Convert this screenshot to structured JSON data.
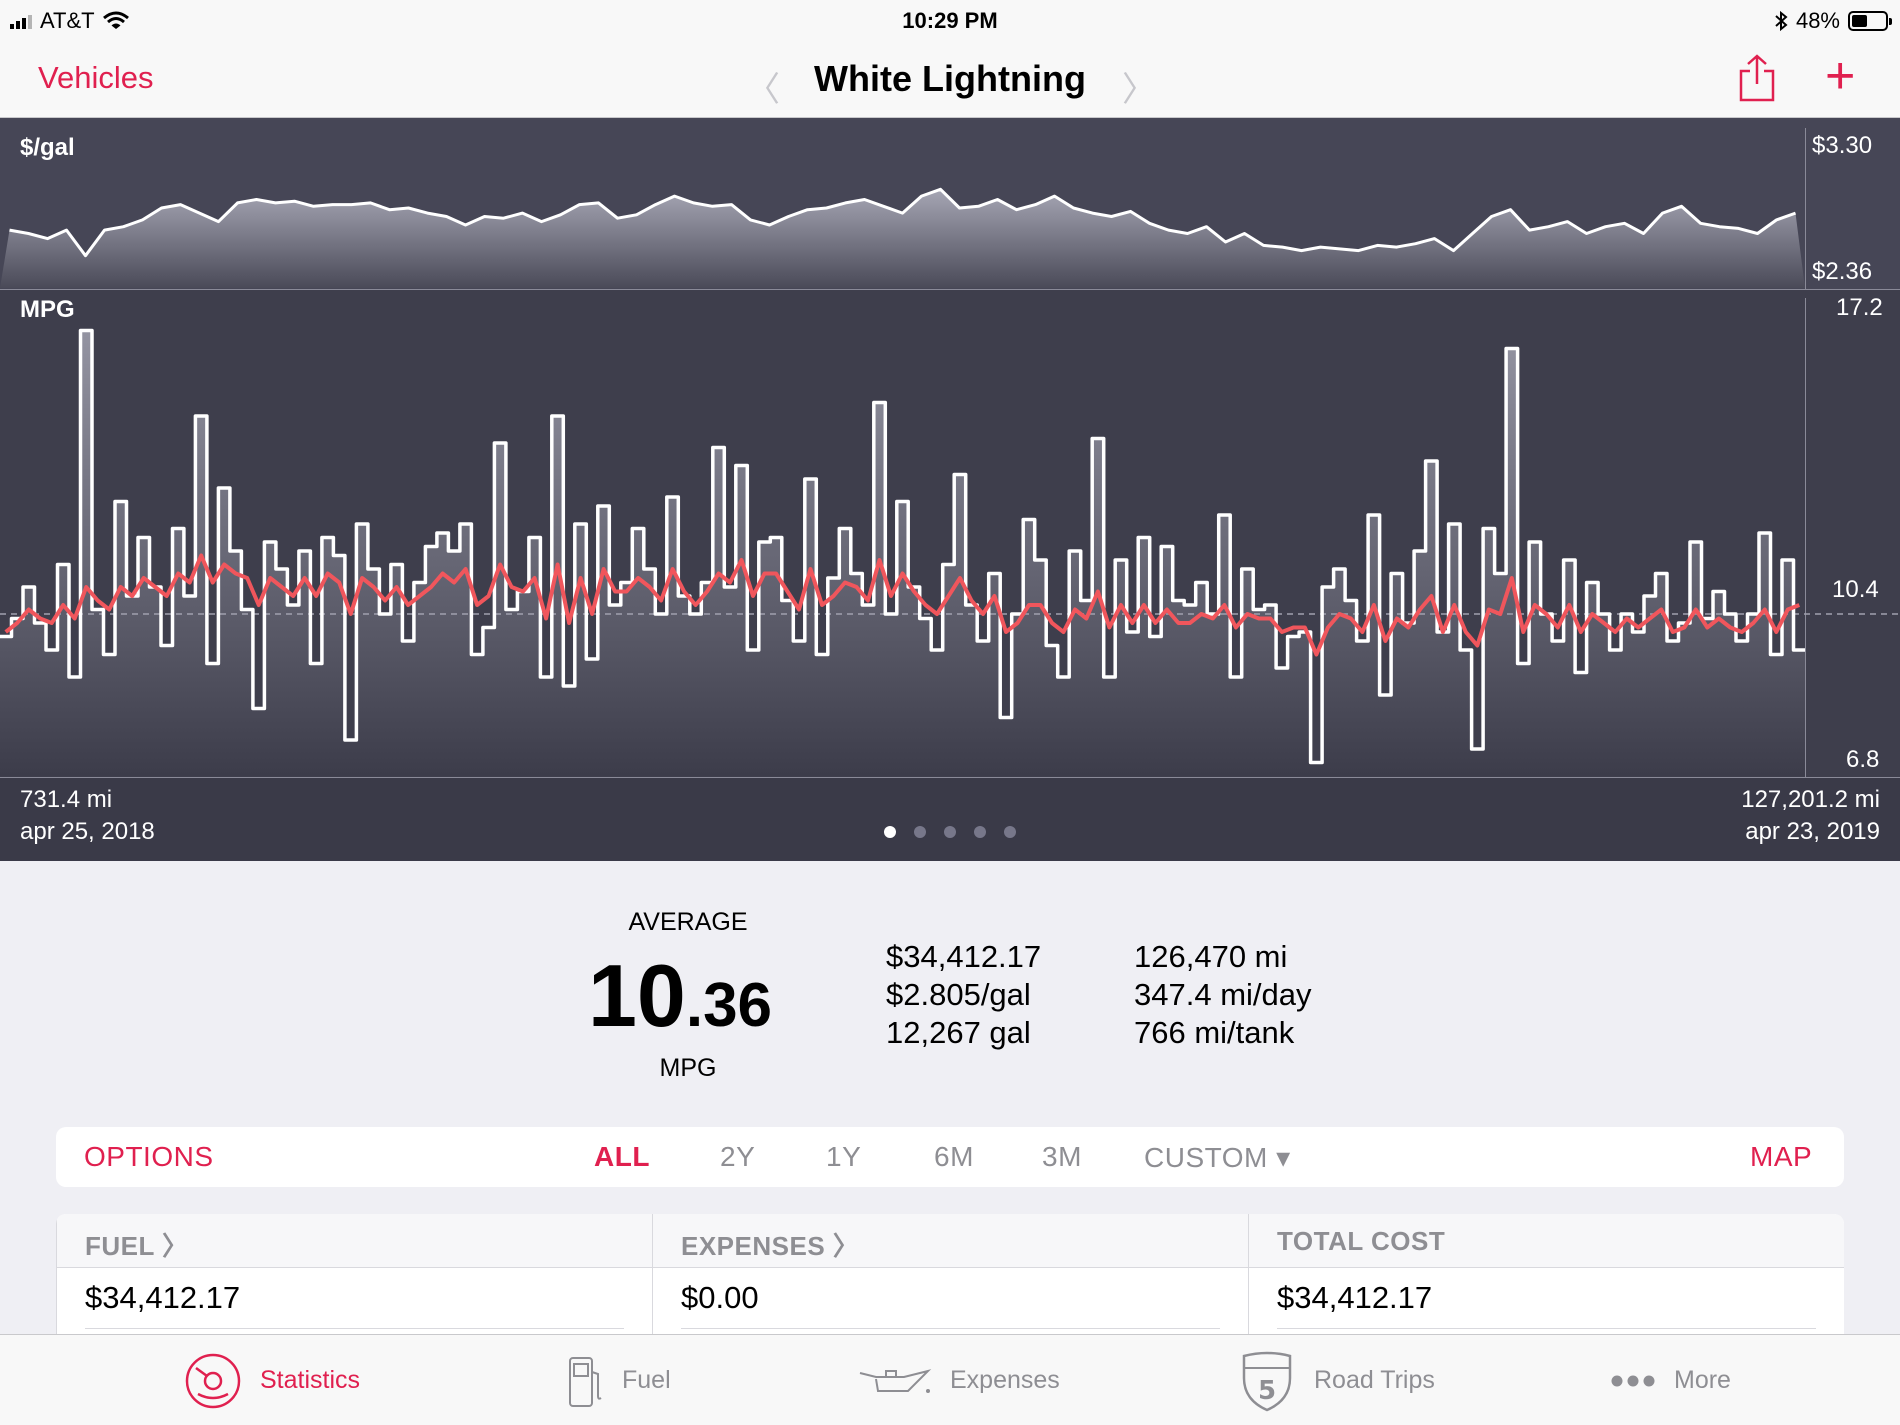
{
  "status_bar": {
    "carrier": "AT&T",
    "time": "10:29 PM",
    "battery": "48%",
    "battery_level": 0.48,
    "icons": [
      "signal-icon",
      "wifi-icon",
      "bluetooth-icon",
      "battery-icon"
    ]
  },
  "nav": {
    "back_label": "Vehicles",
    "title": "White Lightning",
    "prev_icon": "chevron-left-icon",
    "next_icon": "chevron-right-icon",
    "share_icon": "share-icon",
    "add_icon": "plus-icon"
  },
  "colors": {
    "accent": "#e0204f",
    "chart_bg": "#3a3a48",
    "average_line": "#f0565c"
  },
  "chart_data": [
    {
      "type": "line",
      "ylabel": "$/gal",
      "ylim": [
        2.36,
        3.3
      ],
      "tick_labels": [
        "$3.30",
        "$2.36"
      ],
      "series": [
        {
          "values": [
            2.7,
            2.68,
            2.65,
            2.7,
            2.55,
            2.7,
            2.72,
            2.76,
            2.83,
            2.85,
            2.8,
            2.75,
            2.86,
            2.88,
            2.86,
            2.87,
            2.84,
            2.85,
            2.85,
            2.86,
            2.82,
            2.83,
            2.8,
            2.78,
            2.73,
            2.78,
            2.77,
            2.8,
            2.75,
            2.79,
            2.85,
            2.86,
            2.77,
            2.79,
            2.85,
            2.9,
            2.86,
            2.84,
            2.85,
            2.76,
            2.73,
            2.78,
            2.82,
            2.83,
            2.86,
            2.88,
            2.84,
            2.8,
            2.9,
            2.94,
            2.83,
            2.84,
            2.88,
            2.82,
            2.85,
            2.9,
            2.83,
            2.8,
            2.78,
            2.81,
            2.74,
            2.7,
            2.68,
            2.72,
            2.63,
            2.68,
            2.61,
            2.6,
            2.58,
            2.6,
            2.59,
            2.58,
            2.61,
            2.6,
            2.62,
            2.65,
            2.58,
            2.68,
            2.78,
            2.82,
            2.7,
            2.72,
            2.75,
            2.68,
            2.72,
            2.74,
            2.68,
            2.8,
            2.84,
            2.74,
            2.72,
            2.71,
            2.68,
            2.76,
            2.8
          ],
          "color": "#ffffff"
        }
      ]
    },
    {
      "type": "line",
      "ylabel": "MPG",
      "ylim": [
        6.8,
        17.2
      ],
      "tick_labels": [
        "17.2",
        "10.4",
        "6.8"
      ],
      "reference_line": 10.4,
      "series": [
        {
          "values": [
            9.9,
            10.3,
            11.0,
            10.2,
            9.6,
            11.5,
            9.0,
            16.7,
            10.5,
            9.5,
            12.9,
            10.8,
            12.1,
            11.0,
            9.7,
            12.3,
            10.8,
            14.8,
            9.3,
            13.2,
            11.8,
            10.5,
            8.3,
            12.0,
            11.4,
            10.6,
            11.8,
            9.3,
            12.1,
            11.7,
            7.6,
            12.4,
            11.4,
            10.4,
            11.5,
            9.8,
            11.1,
            11.9,
            12.2,
            11.8,
            12.4,
            9.5,
            10.1,
            14.2,
            10.5,
            10.9,
            12.1,
            9.0,
            14.8,
            8.8,
            12.4,
            9.4,
            12.8,
            10.6,
            11.1,
            12.3,
            11.4,
            10.4,
            13.0,
            10.8,
            10.4,
            11.1,
            14.1,
            11.0,
            13.7,
            9.6,
            12.0,
            12.1,
            10.7,
            9.8,
            13.4,
            9.5,
            11.2,
            12.3,
            11.3,
            10.6,
            15.1,
            10.4,
            12.9,
            11.0,
            10.3,
            9.6,
            11.5,
            13.5,
            10.6,
            9.8,
            11.3,
            8.1,
            10.4,
            12.5,
            11.6,
            9.7,
            9.0,
            11.8,
            10.7,
            14.3,
            9.0,
            11.6,
            10.0,
            12.1,
            9.9,
            11.9,
            10.7,
            10.6,
            11.1,
            10.4,
            12.6,
            9.0,
            11.4,
            10.5,
            10.6,
            9.2,
            9.9,
            10.0,
            7.1,
            11.0,
            11.4,
            10.7,
            9.8,
            12.6,
            8.6,
            11.3,
            10.2,
            11.8,
            13.8,
            10.0,
            12.4,
            9.6,
            7.4,
            12.3,
            11.3,
            16.3,
            9.3,
            12.0,
            10.4,
            9.8,
            11.6,
            9.1,
            11.1,
            10.4,
            9.6,
            10.4,
            10.0,
            10.8,
            11.3,
            9.8,
            10.2,
            12.0,
            10.3,
            10.9,
            10.4,
            9.8,
            10.4,
            12.2,
            9.5,
            11.6,
            9.6
          ],
          "color": "#ffffff"
        },
        {
          "name": "average",
          "values": [
            10.0,
            10.2,
            10.5,
            10.3,
            10.2,
            10.6,
            10.3,
            11.0,
            10.7,
            10.5,
            11.0,
            10.8,
            11.2,
            11.0,
            10.8,
            11.3,
            11.1,
            11.7,
            11.1,
            11.5,
            11.3,
            11.2,
            10.6,
            11.2,
            11.0,
            10.8,
            11.2,
            10.8,
            11.3,
            11.1,
            10.4,
            11.2,
            11.0,
            10.7,
            11.0,
            10.6,
            10.8,
            11.0,
            11.3,
            11.1,
            11.4,
            10.6,
            10.8,
            11.5,
            11.0,
            10.9,
            11.2,
            10.3,
            11.5,
            10.2,
            11.2,
            10.4,
            11.4,
            10.9,
            10.9,
            11.2,
            11.0,
            10.7,
            11.4,
            10.9,
            10.6,
            10.9,
            11.3,
            11.1,
            11.6,
            10.8,
            11.3,
            11.3,
            10.9,
            10.5,
            11.4,
            10.6,
            10.8,
            11.1,
            11.0,
            10.7,
            11.6,
            10.8,
            11.3,
            10.9,
            10.6,
            10.4,
            10.8,
            11.2,
            10.7,
            10.4,
            10.8,
            10.0,
            10.2,
            10.6,
            10.6,
            10.2,
            10.0,
            10.5,
            10.3,
            10.9,
            10.1,
            10.6,
            10.2,
            10.6,
            10.2,
            10.5,
            10.2,
            10.2,
            10.4,
            10.3,
            10.6,
            10.1,
            10.4,
            10.3,
            10.3,
            10.0,
            10.1,
            10.1,
            9.5,
            10.1,
            10.4,
            10.3,
            10.0,
            10.6,
            9.8,
            10.3,
            10.1,
            10.5,
            10.8,
            10.0,
            10.6,
            10.0,
            9.7,
            10.5,
            10.4,
            11.2,
            10.0,
            10.6,
            10.4,
            10.1,
            10.6,
            10.0,
            10.4,
            10.2,
            10.0,
            10.3,
            10.1,
            10.3,
            10.5,
            10.0,
            10.1,
            10.5,
            10.1,
            10.3,
            10.1,
            10.0,
            10.2,
            10.5,
            10.0,
            10.5,
            10.6
          ],
          "color": "#f0565c"
        }
      ]
    }
  ],
  "chart_footer": {
    "start_distance": "731.4 mi",
    "start_date": "apr 25, 2018",
    "end_distance": "127,201.2 mi",
    "end_date": "apr 23, 2019",
    "page_count": 5,
    "active_page": 1
  },
  "summary": {
    "average_label": "AVERAGE",
    "average_int": "10",
    "average_dec": ".36",
    "average_unit": "MPG",
    "col1": [
      "$34,412.17",
      "$2.805/gal",
      "12,267 gal"
    ],
    "col2": [
      "126,470 mi",
      "347.4 mi/day",
      "766 mi/tank"
    ]
  },
  "filter": {
    "options_label": "OPTIONS",
    "ranges": [
      "ALL",
      "2Y",
      "1Y",
      "6M",
      "3M"
    ],
    "active_range": "ALL",
    "custom_label": "CUSTOM ▾",
    "map_label": "MAP"
  },
  "cost_table": {
    "headers": [
      "FUEL 〉",
      "EXPENSES 〉",
      "TOTAL COST"
    ],
    "values": [
      "$34,412.17",
      "$0.00",
      "$34,412.17"
    ]
  },
  "tabbar": {
    "tabs": [
      {
        "label": "Statistics",
        "icon": "gauge-icon",
        "active": true
      },
      {
        "label": "Fuel",
        "icon": "fuel-pump-icon",
        "active": false
      },
      {
        "label": "Expenses",
        "icon": "oil-can-icon",
        "active": false
      },
      {
        "label": "Road Trips",
        "icon": "highway-shield-icon",
        "active": false
      },
      {
        "label": "More",
        "icon": "more-dots-icon",
        "active": false
      }
    ]
  }
}
